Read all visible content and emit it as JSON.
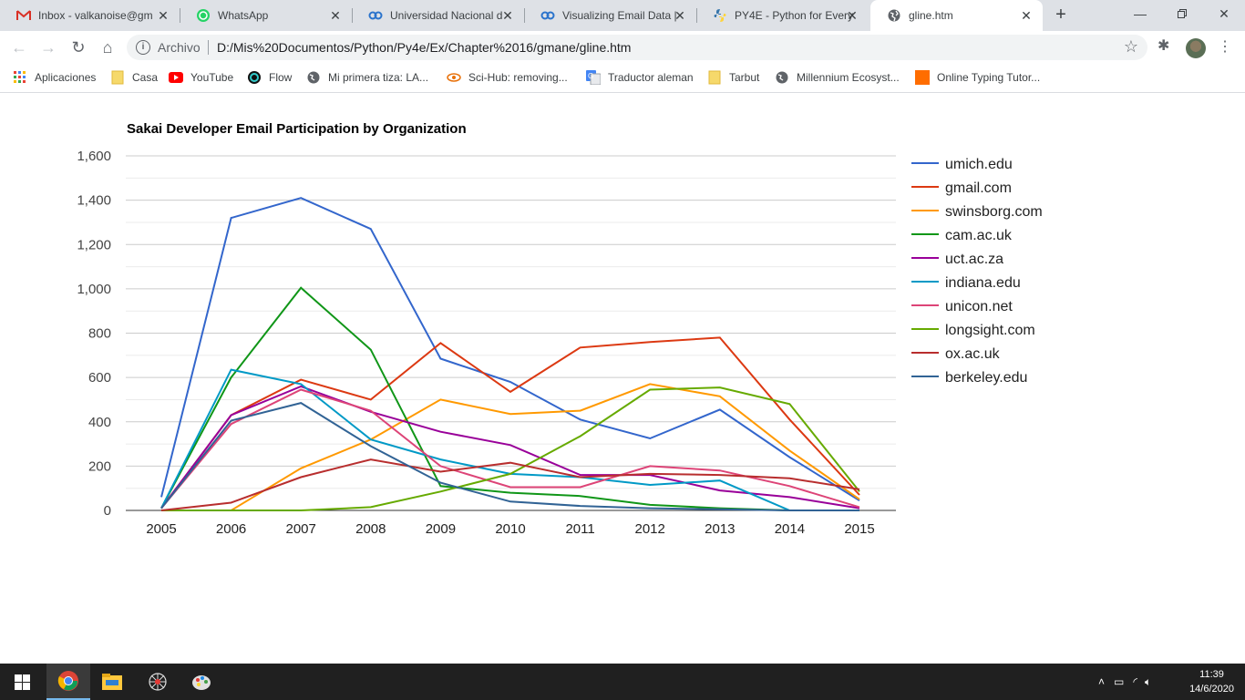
{
  "browser": {
    "tabs": [
      {
        "title": "Inbox - valkanoise@gm",
        "icon": "gmail-icon",
        "active": false
      },
      {
        "title": "WhatsApp",
        "icon": "whatsapp-icon",
        "active": false
      },
      {
        "title": "Universidad Nacional d",
        "icon": "coursera-icon",
        "active": false
      },
      {
        "title": "Visualizing Email Data |",
        "icon": "coursera-icon",
        "active": false
      },
      {
        "title": "PY4E - Python for Every",
        "icon": "python-icon",
        "active": false
      },
      {
        "title": "gline.htm",
        "icon": "globe-icon",
        "active": true
      }
    ],
    "address": {
      "scheme_label": "Archivo",
      "url": "D:/Mis%20Documentos/Python/Py4e/Ex/Chapter%2016/gmane/gline.htm"
    },
    "bookmarks": [
      {
        "label": "Aplicaciones",
        "icon": "apps-grid-icon"
      },
      {
        "label": "Casa",
        "icon": "folder-icon"
      },
      {
        "label": "YouTube",
        "icon": "youtube-icon"
      },
      {
        "label": "Flow",
        "icon": "flow-icon"
      },
      {
        "label": "Mi primera tiza: LA...",
        "icon": "globe-icon"
      },
      {
        "label": "Sci-Hub: removing...",
        "icon": "scihub-icon"
      },
      {
        "label": "Traductor aleman",
        "icon": "translate-icon"
      },
      {
        "label": "Tarbut",
        "icon": "folder-icon"
      },
      {
        "label": "Millennium Ecosyst...",
        "icon": "globe-icon"
      },
      {
        "label": "Online Typing Tutor...",
        "icon": "typing-icon"
      }
    ]
  },
  "chart_data": {
    "type": "line",
    "title": "Sakai Developer Email Participation by Organization",
    "xlabel": "",
    "ylabel": "",
    "x": [
      "2005",
      "2006",
      "2007",
      "2008",
      "2009",
      "2010",
      "2011",
      "2012",
      "2013",
      "2014",
      "2015"
    ],
    "ylim": [
      0,
      1600
    ],
    "yticks": [
      "0",
      "200",
      "400",
      "600",
      "800",
      "1,000",
      "1,200",
      "1,400",
      "1,600"
    ],
    "ytick_values": [
      0,
      200,
      400,
      600,
      800,
      1000,
      1200,
      1400,
      1600
    ],
    "grid": true,
    "legend_position": "right",
    "series": [
      {
        "name": "umich.edu",
        "color": "#3366cc",
        "values": [
          60,
          1320,
          1410,
          1270,
          685,
          580,
          410,
          325,
          455,
          240,
          45
        ]
      },
      {
        "name": "gmail.com",
        "color": "#dc3912",
        "values": [
          10,
          430,
          590,
          500,
          755,
          535,
          735,
          760,
          780,
          410,
          70
        ]
      },
      {
        "name": "swinsborg.com",
        "color": "#ff9900",
        "values": [
          0,
          0,
          190,
          320,
          500,
          435,
          450,
          570,
          515,
          270,
          50
        ]
      },
      {
        "name": "cam.ac.uk",
        "color": "#109618",
        "values": [
          10,
          600,
          1005,
          725,
          110,
          80,
          65,
          25,
          10,
          0,
          0
        ]
      },
      {
        "name": "uct.ac.za",
        "color": "#990099",
        "values": [
          10,
          430,
          560,
          445,
          355,
          295,
          160,
          160,
          90,
          60,
          10
        ]
      },
      {
        "name": "indiana.edu",
        "color": "#0099c6",
        "values": [
          10,
          635,
          570,
          320,
          230,
          165,
          150,
          115,
          135,
          0,
          0
        ]
      },
      {
        "name": "unicon.net",
        "color": "#dd4477",
        "values": [
          10,
          390,
          545,
          450,
          200,
          105,
          105,
          200,
          180,
          110,
          15
        ]
      },
      {
        "name": "longsight.com",
        "color": "#66aa00",
        "values": [
          0,
          0,
          0,
          15,
          85,
          165,
          335,
          545,
          555,
          480,
          85
        ]
      },
      {
        "name": "ox.ac.uk",
        "color": "#b82e2e",
        "values": [
          0,
          35,
          150,
          230,
          175,
          215,
          150,
          165,
          160,
          145,
          95
        ]
      },
      {
        "name": "berkeley.edu",
        "color": "#316395",
        "values": [
          10,
          405,
          485,
          290,
          125,
          40,
          20,
          10,
          5,
          0,
          0
        ]
      }
    ]
  },
  "taskbar": {
    "apps": [
      "windows-start-icon",
      "chrome-icon",
      "file-explorer-icon",
      "spider-app-icon",
      "paint-icon"
    ],
    "time": "11:39",
    "date": "14/6/2020"
  }
}
